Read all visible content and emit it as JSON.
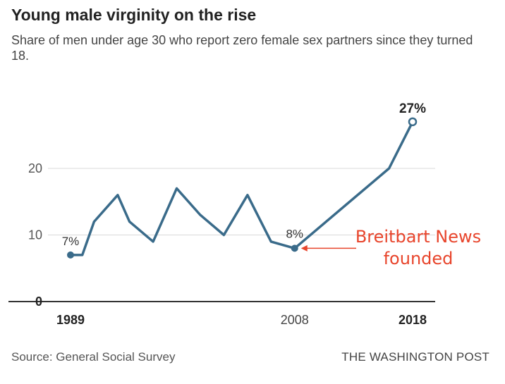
{
  "chart_data": {
    "type": "line",
    "title": "Young male virginity on the rise",
    "subtitle": "Share of men under age 30 who report zero female sex partners since they turned 18.",
    "x": [
      1989,
      1990,
      1991,
      1993,
      1994,
      1996,
      1998,
      2000,
      2002,
      2004,
      2006,
      2008,
      2016,
      2018
    ],
    "series": [
      {
        "values": [
          7,
          7,
          12,
          16,
          12,
          9,
          17,
          13,
          10,
          16,
          9,
          8,
          20,
          27
        ]
      }
    ],
    "ylim": [
      0,
      30
    ],
    "yticks": [
      0,
      10,
      20
    ],
    "xtick_labels": [
      {
        "x": 1989,
        "label": "1989",
        "bold": true
      },
      {
        "x": 2008,
        "label": "2008",
        "bold": false
      },
      {
        "x": 2018,
        "label": "2018",
        "bold": true
      }
    ],
    "point_labels": [
      {
        "x": 1989,
        "label": "7%",
        "bold": false
      },
      {
        "x": 2008,
        "label": "8%",
        "bold": false
      },
      {
        "x": 2018,
        "label": "27%",
        "bold": true
      }
    ],
    "annotation": {
      "x": 2008,
      "y": 8,
      "lines": [
        "Breitbart News",
        "founded"
      ],
      "color": "#e8452c"
    },
    "line_color": "#3a6b8a",
    "grid": true
  },
  "source": "Source: General Social Survey",
  "publisher": "THE WASHINGTON POST"
}
